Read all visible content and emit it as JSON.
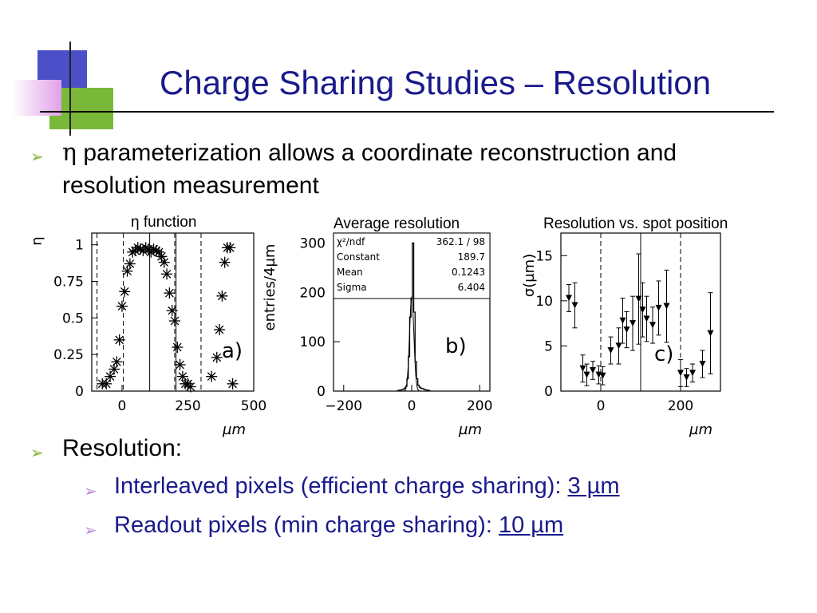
{
  "slide": {
    "title": "Charge Sharing Studies – Resolution",
    "bullet1_symbol": "η",
    "bullet1_text": " parameterization allows a coordinate reconstruction and",
    "bullet1_text_line2": "resolution measurement",
    "bullet2": "Resolution:",
    "sub1_prefix": "Interleaved pixels (efficient charge sharing): ",
    "sub1_value": "3 µm",
    "sub2_prefix": "Readout pixels (min charge sharing): ",
    "sub2_value": "10 µm",
    "colors": {
      "title": "#1a1a8c",
      "bullet": "#7db52e",
      "sub_bullet": "#b888d8"
    }
  },
  "chart_data": [
    {
      "type": "scatter",
      "title": "η function",
      "ylabel": "η",
      "xlabel": "µm",
      "panel_label": "a)",
      "marker": "star",
      "xlim": [
        -115,
        500
      ],
      "ylim": [
        0,
        1.08
      ],
      "xticks": [
        0,
        250,
        500
      ],
      "yticks": [
        0,
        0.25,
        0.5,
        0.75,
        1
      ],
      "ytick_labels": [
        "0",
        "0.25",
        "0.5",
        "0.75",
        "1"
      ],
      "dashed_x": [
        -95,
        5,
        200,
        300
      ],
      "solid_x": [
        105,
        205
      ],
      "points": {
        "x": [
          -75,
          -60,
          -45,
          -30,
          -20,
          -10,
          0,
          10,
          20,
          30,
          40,
          50,
          60,
          70,
          80,
          90,
          100,
          110,
          120,
          130,
          140,
          150,
          160,
          170,
          180,
          190,
          200,
          210,
          220,
          230,
          240,
          250,
          260,
          340,
          360,
          370,
          380,
          390,
          400,
          410,
          420
        ],
        "y": [
          0.05,
          0.05,
          0.1,
          0.15,
          0.2,
          0.35,
          0.58,
          0.68,
          0.82,
          0.87,
          0.95,
          0.96,
          0.98,
          0.97,
          0.96,
          0.98,
          0.97,
          0.95,
          0.97,
          0.96,
          0.95,
          0.92,
          0.88,
          0.8,
          0.67,
          0.55,
          0.48,
          0.3,
          0.18,
          0.1,
          0.05,
          0.05,
          0.03,
          0.1,
          0.23,
          0.42,
          0.65,
          0.88,
          0.98,
          0.98,
          0.05
        ]
      }
    },
    {
      "type": "histogram",
      "title": "Average resolution",
      "ylabel": "entries/4µm",
      "xlabel": "µm",
      "panel_label": "b)",
      "xlim": [
        -230,
        230
      ],
      "ylim": [
        0,
        320
      ],
      "xticks": [
        -200,
        0,
        200
      ],
      "xtick_labels": [
        "−200",
        "0",
        "200"
      ],
      "yticks": [
        0,
        100,
        200,
        300
      ],
      "stats_box": [
        {
          "label": "χ²/ndf",
          "value": "362.1  /  98"
        },
        {
          "label": "Constant",
          "value": "189.7"
        },
        {
          "label": "Mean",
          "value": "0.1243"
        },
        {
          "label": "Sigma",
          "value": "6.404"
        }
      ],
      "bins": {
        "x": [
          -40,
          -36,
          -32,
          -28,
          -24,
          -20,
          -16,
          -12,
          -8,
          -4,
          0,
          4,
          8,
          12,
          16,
          20,
          24,
          28,
          32,
          36,
          40,
          44,
          48,
          52
        ],
        "y": [
          1,
          2,
          2,
          3,
          4,
          6,
          10,
          25,
          70,
          150,
          188,
          300,
          160,
          60,
          25,
          12,
          8,
          6,
          5,
          4,
          3,
          2,
          2,
          1
        ]
      }
    },
    {
      "type": "scatter_errorbar",
      "title": "Resolution vs. spot position",
      "ylabel": "σ(µm)",
      "xlabel": "µm",
      "panel_label": "c)",
      "marker": "triangle-down",
      "xlim": [
        -100,
        300
      ],
      "ylim": [
        0,
        17.5
      ],
      "xticks": [
        0,
        200
      ],
      "yticks": [
        0,
        5,
        10,
        15
      ],
      "dashed_x": [
        0,
        200
      ],
      "solid_x": [
        100
      ],
      "points": {
        "x": [
          -80,
          -65,
          -45,
          -35,
          -20,
          -5,
          5,
          25,
          45,
          55,
          65,
          80,
          95,
          105,
          115,
          130,
          145,
          165,
          200,
          215,
          230,
          255,
          275
        ],
        "y": [
          10.3,
          9.5,
          2.5,
          1.8,
          2.3,
          1.8,
          1.7,
          4.5,
          5,
          7.8,
          6.8,
          7.5,
          10.2,
          9,
          8,
          7.3,
          9.2,
          9.4,
          2,
          1.5,
          2,
          3,
          6.4
        ],
        "err": [
          1.5,
          2.5,
          1.5,
          1.2,
          1.0,
          1.0,
          1.0,
          1.5,
          2,
          2.5,
          2,
          3,
          5,
          3,
          2.5,
          2,
          3,
          4,
          1.5,
          1,
          1,
          1.5,
          4.5
        ]
      }
    }
  ]
}
